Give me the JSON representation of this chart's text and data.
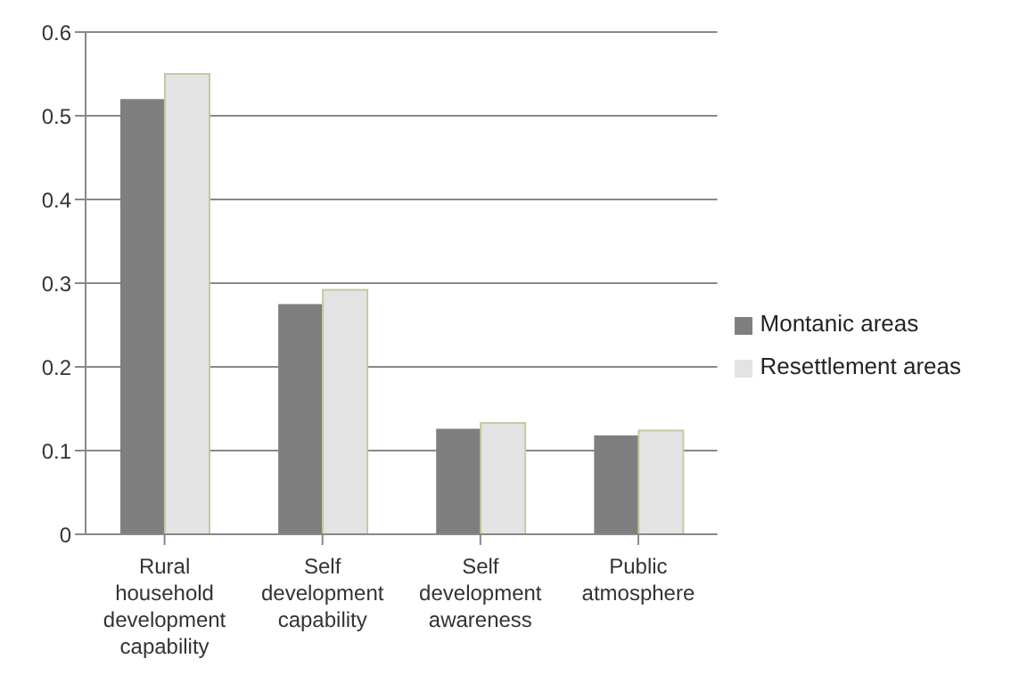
{
  "chart_data": {
    "type": "bar",
    "categories": [
      "Rural household development capability",
      "Self development capability",
      "Self development awareness",
      "Public atmosphere"
    ],
    "series": [
      {
        "name": "Montanic areas",
        "color": "#7f7f7f",
        "values": [
          0.52,
          0.275,
          0.126,
          0.118
        ]
      },
      {
        "name": "Resettlement areas",
        "color": "#e3e3e3",
        "values": [
          0.55,
          0.292,
          0.133,
          0.124
        ]
      }
    ],
    "ylim": [
      0,
      0.6
    ],
    "yticks": [
      0,
      0.1,
      0.2,
      0.3,
      0.4,
      0.5,
      0.6
    ],
    "grid": "y",
    "legend": "right"
  }
}
